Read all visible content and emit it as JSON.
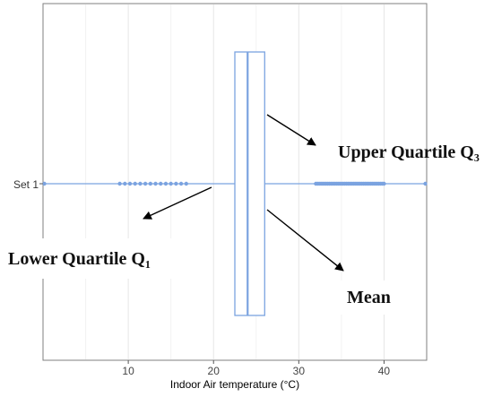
{
  "chart_data": {
    "type": "boxplot",
    "orientation": "horizontal",
    "xlabel": "Indoor Air temperature (°C)",
    "ylabel": "",
    "categories": [
      "Set 1"
    ],
    "xlim": [
      0,
      45
    ],
    "x_ticks": [
      10,
      20,
      30,
      40
    ],
    "grid": true,
    "box": {
      "whisker_min": 0,
      "q1": 22.5,
      "median": 24,
      "q3": 26,
      "whisker_max": 45
    },
    "outliers_low": [
      9,
      9.6,
      10.2,
      10.8,
      11.4,
      12,
      12.6,
      13.2,
      13.8,
      14.4,
      15,
      15.6,
      16.2,
      16.8
    ],
    "outliers_high_range": [
      32,
      40
    ],
    "series_color": "#7BA3E0",
    "annotations": {
      "upper_quartile": "Upper Quartile Q₃",
      "lower_quartile": "Lower Quartile Q₁",
      "mean": "Mean"
    }
  }
}
